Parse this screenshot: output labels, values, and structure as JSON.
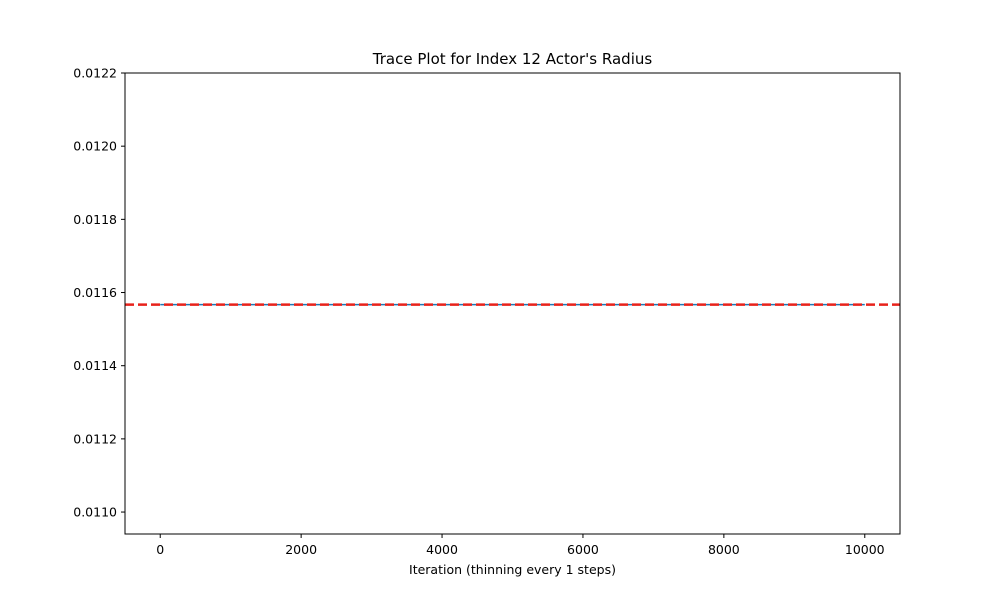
{
  "chart_data": {
    "type": "line",
    "title": "Trace Plot for Index 12 Actor's Radius",
    "xlabel": "Iteration (thinning every 1 steps)",
    "ylabel": "",
    "xlim": [
      -500,
      10500
    ],
    "ylim": [
      0.01094,
      0.0122
    ],
    "xticks": [
      0,
      2000,
      4000,
      6000,
      8000,
      10000
    ],
    "xtick_labels": [
      "0",
      "2000",
      "4000",
      "6000",
      "8000",
      "10000"
    ],
    "yticks": [
      0.011,
      0.0112,
      0.0114,
      0.0116,
      0.0118,
      0.012,
      0.0122
    ],
    "ytick_labels": [
      "0.0110",
      "0.0112",
      "0.0114",
      "0.0116",
      "0.0118",
      "0.0120",
      "0.0122"
    ],
    "grid": false,
    "series": [
      {
        "color": "#1f77b4",
        "x": [
          0,
          10000
        ],
        "y": [
          0.011567,
          0.011567
        ]
      }
    ],
    "reference_lines": [
      {
        "orientation": "horizontal",
        "y": 0.011567,
        "color": "#e8221b",
        "style": "dashed"
      }
    ]
  }
}
